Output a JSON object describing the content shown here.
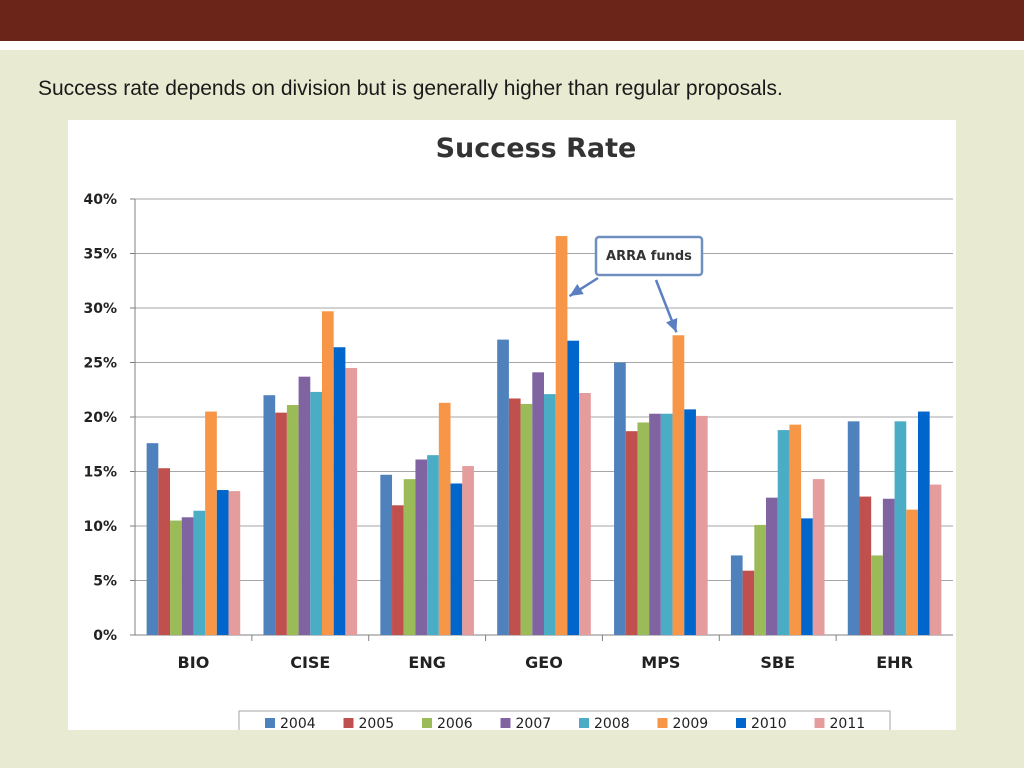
{
  "caption": "Success rate depends on division but is generally higher than regular proposals.",
  "colors": {
    "top_bar": "#6b2519",
    "background": "#e8ebd1"
  },
  "chart_data": {
    "type": "bar",
    "title": "Success Rate",
    "xlabel": "",
    "ylabel": "",
    "ylim": [
      0,
      0.4
    ],
    "y_ticks": [
      "0%",
      "5%",
      "10%",
      "15%",
      "20%",
      "25%",
      "30%",
      "35%",
      "40%"
    ],
    "grid": true,
    "legend_position": "bottom",
    "categories": [
      "BIO",
      "CISE",
      "ENG",
      "GEO",
      "MPS",
      "SBE",
      "EHR"
    ],
    "series": [
      {
        "name": "2004",
        "color": "#4f81bd",
        "values": [
          0.176,
          0.22,
          0.147,
          0.271,
          0.25,
          0.073,
          0.196
        ]
      },
      {
        "name": "2005",
        "color": "#c0504d",
        "values": [
          0.153,
          0.204,
          0.119,
          0.217,
          0.187,
          0.059,
          0.127
        ]
      },
      {
        "name": "2006",
        "color": "#9bbb59",
        "values": [
          0.105,
          0.211,
          0.143,
          0.212,
          0.195,
          0.101,
          0.073
        ]
      },
      {
        "name": "2007",
        "color": "#8064a2",
        "values": [
          0.108,
          0.237,
          0.161,
          0.241,
          0.203,
          0.126,
          0.125
        ]
      },
      {
        "name": "2008",
        "color": "#4bacc6",
        "values": [
          0.114,
          0.223,
          0.165,
          0.221,
          0.203,
          0.188,
          0.196
        ]
      },
      {
        "name": "2009",
        "color": "#f79646",
        "values": [
          0.205,
          0.297,
          0.213,
          0.366,
          0.275,
          0.193,
          0.115
        ]
      },
      {
        "name": "2010",
        "color": "#0066cc",
        "values": [
          0.133,
          0.264,
          0.139,
          0.27,
          0.207,
          0.107,
          0.205
        ]
      },
      {
        "name": "2011",
        "color": "#e59c9c",
        "values": [
          0.132,
          0.245,
          0.155,
          0.222,
          0.201,
          0.143,
          0.138
        ]
      }
    ],
    "annotation": {
      "text": "ARRA funds",
      "points_to": [
        {
          "category": "GEO",
          "series": "2009"
        },
        {
          "category": "MPS",
          "series": "2009"
        }
      ]
    }
  }
}
